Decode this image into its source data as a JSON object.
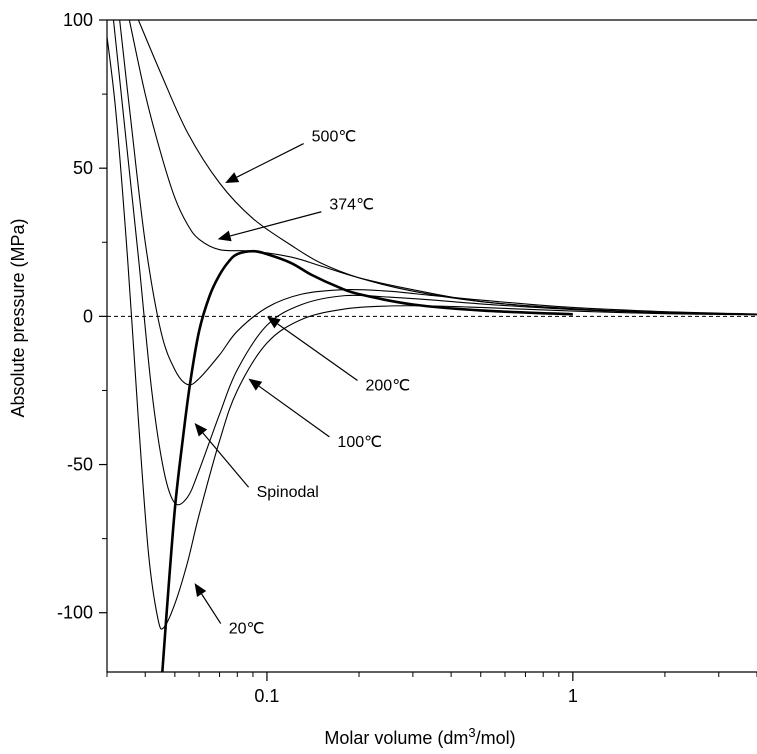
{
  "chart_data": {
    "type": "line",
    "xscale": "log",
    "xlabel_text": "Molar volume (dm",
    "xlabel_sup": "3",
    "xlabel_tail": "/mol)",
    "ylabel": "Absolute pressure (MPa)",
    "xlim": [
      0.03,
      4
    ],
    "ylim": [
      -120,
      100
    ],
    "xticks": [
      0.1,
      1
    ],
    "xtick_labels": [
      "0.1",
      "1"
    ],
    "yticks": [
      100,
      50,
      0,
      -50,
      -100
    ],
    "ytick_labels": [
      "100",
      "50",
      "0",
      "-50",
      "-100"
    ],
    "reference_line": {
      "y": 0,
      "style": "dashed"
    },
    "series": [
      {
        "name": "500℃",
        "points": [
          [
            0.038,
            100
          ],
          [
            0.045,
            82
          ],
          [
            0.055,
            62
          ],
          [
            0.07,
            45
          ],
          [
            0.09,
            33
          ],
          [
            0.12,
            24
          ],
          [
            0.15,
            18
          ],
          [
            0.2,
            13
          ],
          [
            0.3,
            8.5
          ],
          [
            0.5,
            5
          ],
          [
            1,
            2.5
          ],
          [
            2,
            1.3
          ],
          [
            4,
            0.7
          ]
        ]
      },
      {
        "name": "374℃",
        "points": [
          [
            0.0355,
            100
          ],
          [
            0.04,
            75
          ],
          [
            0.045,
            55
          ],
          [
            0.05,
            40
          ],
          [
            0.055,
            31
          ],
          [
            0.06,
            26
          ],
          [
            0.07,
            22.5
          ],
          [
            0.09,
            22
          ],
          [
            0.12,
            20
          ],
          [
            0.15,
            17
          ],
          [
            0.2,
            13
          ],
          [
            0.3,
            9
          ],
          [
            0.5,
            5
          ],
          [
            1,
            2.6
          ],
          [
            2,
            1.3
          ],
          [
            4,
            0.7
          ]
        ]
      },
      {
        "name": "200℃",
        "points": [
          [
            0.033,
            100
          ],
          [
            0.036,
            65
          ],
          [
            0.04,
            25
          ],
          [
            0.045,
            -5
          ],
          [
            0.05,
            -18
          ],
          [
            0.055,
            -23
          ],
          [
            0.06,
            -21
          ],
          [
            0.07,
            -13
          ],
          [
            0.08,
            -5
          ],
          [
            0.1,
            3
          ],
          [
            0.13,
            7.5
          ],
          [
            0.18,
            9
          ],
          [
            0.25,
            8.5
          ],
          [
            0.35,
            7
          ],
          [
            0.5,
            5.5
          ],
          [
            1,
            3
          ],
          [
            2,
            1.6
          ],
          [
            4,
            0.8
          ]
        ]
      },
      {
        "name": "100℃",
        "points": [
          [
            0.0315,
            100
          ],
          [
            0.035,
            55
          ],
          [
            0.038,
            20
          ],
          [
            0.042,
            -25
          ],
          [
            0.046,
            -52
          ],
          [
            0.05,
            -63
          ],
          [
            0.055,
            -61
          ],
          [
            0.06,
            -52
          ],
          [
            0.07,
            -33
          ],
          [
            0.08,
            -18
          ],
          [
            0.1,
            -3
          ],
          [
            0.13,
            4
          ],
          [
            0.18,
            7
          ],
          [
            0.25,
            6.5
          ],
          [
            0.35,
            5.5
          ],
          [
            0.5,
            4.2
          ],
          [
            1,
            2.3
          ],
          [
            2,
            1.2
          ],
          [
            4,
            0.6
          ]
        ]
      },
      {
        "name": "20℃",
        "points": [
          [
            0.0295,
            100
          ],
          [
            0.032,
            70
          ],
          [
            0.035,
            20
          ],
          [
            0.038,
            -35
          ],
          [
            0.041,
            -80
          ],
          [
            0.044,
            -102
          ],
          [
            0.046,
            -105
          ],
          [
            0.05,
            -97
          ],
          [
            0.055,
            -83
          ],
          [
            0.06,
            -67
          ],
          [
            0.07,
            -42
          ],
          [
            0.08,
            -25
          ],
          [
            0.1,
            -9
          ],
          [
            0.13,
            -1
          ],
          [
            0.18,
            2.5
          ],
          [
            0.25,
            3.5
          ],
          [
            0.35,
            3.5
          ],
          [
            0.5,
            3
          ],
          [
            1,
            1.8
          ],
          [
            2,
            0.9
          ],
          [
            4,
            0.5
          ]
        ]
      },
      {
        "name": "Spinodal",
        "bold": true,
        "points": [
          [
            0.0455,
            -120
          ],
          [
            0.047,
            -100
          ],
          [
            0.05,
            -65
          ],
          [
            0.053,
            -42
          ],
          [
            0.056,
            -23
          ],
          [
            0.06,
            -5
          ],
          [
            0.065,
            7
          ],
          [
            0.07,
            14
          ],
          [
            0.075,
            18.5
          ],
          [
            0.08,
            21
          ],
          [
            0.09,
            22
          ],
          [
            0.1,
            21
          ],
          [
            0.12,
            18
          ],
          [
            0.14,
            14
          ],
          [
            0.17,
            10
          ],
          [
            0.2,
            7.5
          ],
          [
            0.3,
            4
          ],
          [
            0.5,
            2
          ],
          [
            1,
            0.7
          ]
        ]
      }
    ],
    "annotations": [
      {
        "label": "500℃",
        "text_at": [
          0.14,
          61
        ],
        "tip": [
          0.073,
          45
        ]
      },
      {
        "label": "374℃",
        "text_at": [
          0.16,
          38
        ],
        "tip": [
          0.069,
          26
        ]
      },
      {
        "label": "200℃",
        "text_at": [
          0.21,
          -23
        ],
        "tip": [
          0.1,
          0
        ]
      },
      {
        "label": "100℃",
        "text_at": [
          0.17,
          -42
        ],
        "tip": [
          0.087,
          -21
        ]
      },
      {
        "label": "Spinodal",
        "text_at": [
          0.0925,
          -59
        ],
        "tip": [
          0.058,
          -36
        ]
      },
      {
        "label": "20℃",
        "text_at": [
          0.075,
          -105
        ],
        "tip": [
          0.058,
          -90
        ]
      }
    ]
  }
}
